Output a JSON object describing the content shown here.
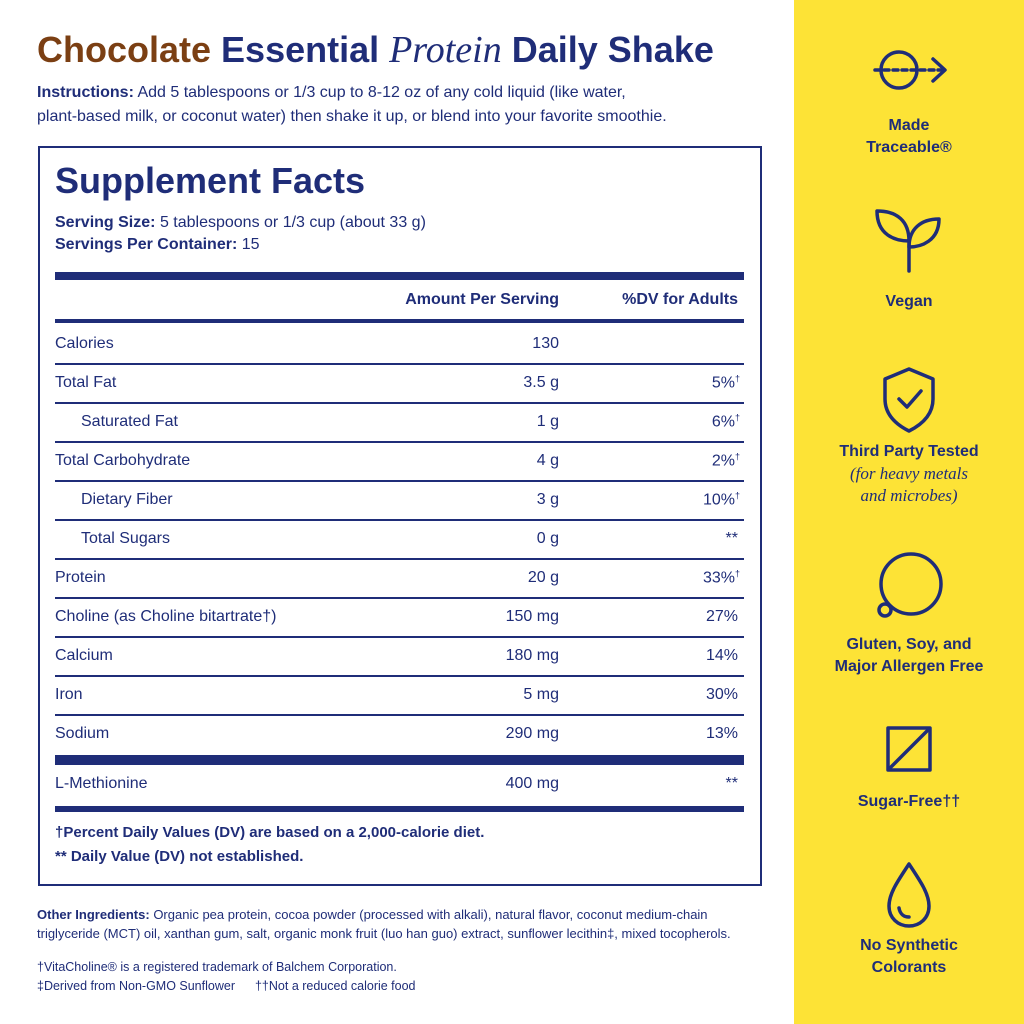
{
  "header": {
    "title": {
      "parts": [
        "Chocolate",
        "Essential",
        "Protein",
        "Daily Shake"
      ]
    },
    "instructions": {
      "label": "Instructions:",
      "lines": [
        "Add 5 tablespoons or 1/3 cup to 8-12 oz of any cold liquid (like water,",
        "plant-based milk, or coconut water) then shake it up, or blend into your favorite smoothie."
      ]
    }
  },
  "facts": {
    "title": "Supplement Facts",
    "serving_size": {
      "label": "Serving Size:",
      "text": "5 tablespoons or 1/3 cup (about 33 g)"
    },
    "servings": {
      "label": "Servings Per Container:",
      "text": "15"
    },
    "columns": [
      "Amount Per Serving",
      "%DV for Adults"
    ],
    "rows": [
      {
        "name": "Calories",
        "amount": "130"
      },
      {
        "name": "Total Fat",
        "amount": "3.5 g",
        "dv": "5%",
        "mark": "†"
      },
      {
        "name": "Saturated Fat",
        "amount": "1 g",
        "dv": "6%",
        "mark": "†",
        "sub": true
      },
      {
        "name": "Total Carbohydrate",
        "amount": "4 g",
        "dv": "2%",
        "mark": "†"
      },
      {
        "name": "Dietary Fiber",
        "amount": "3 g",
        "dv": "10%",
        "mark": "†",
        "sub": true
      },
      {
        "name": "Total Sugars",
        "amount": "0 g",
        "dv": "**",
        "sub": true
      },
      {
        "name": "Protein",
        "amount": "20 g",
        "dv": "33%",
        "mark": "†"
      },
      {
        "name": "Choline (as Choline bitartrate†)",
        "amount": "150 mg",
        "dv": "27%"
      },
      {
        "name": "Calcium",
        "amount": "180 mg",
        "dv": "14%"
      },
      {
        "name": "Iron",
        "amount": "5 mg",
        "dv": "30%"
      },
      {
        "name": "Sodium",
        "amount": "290 mg",
        "dv": "13%"
      }
    ],
    "extra_rows": [
      {
        "name": "L-Methionine",
        "amount": "400 mg",
        "dv": "**"
      }
    ],
    "footnotes": [
      "†Percent Daily Values (DV) are based on a 2,000-calorie diet.",
      "** Daily Value (DV) not established."
    ]
  },
  "other_ingredients": {
    "label": "Other Ingredients:",
    "lines": [
      "Organic pea protein, cocoa powder (processed with alkali), natural flavor, coconut medium-chain",
      "triglyceride (MCT) oil, xanthan gum, salt, organic monk fruit (luo han guo) extract, sunflower lecithin‡, mixed tocopherols."
    ]
  },
  "notes": [
    "†VitaCholine® is a registered trademark of Balchem Corporation.",
    "‡Derived from Non-GMO Sunflower",
    "††Not a reduced calorie food"
  ],
  "badges": [
    {
      "lines": [
        "Made",
        "Traceable®"
      ]
    },
    {
      "lines": [
        "Vegan"
      ]
    },
    {
      "lines": [
        "Third Party Tested"
      ],
      "note": [
        "(for heavy metals",
        "and microbes)"
      ]
    },
    {
      "lines": [
        "Gluten, Soy, and",
        "Major Allergen Free"
      ]
    },
    {
      "lines": [
        "Sugar-Free††"
      ]
    },
    {
      "lines": [
        "No Synthetic",
        "Colorants"
      ]
    }
  ]
}
